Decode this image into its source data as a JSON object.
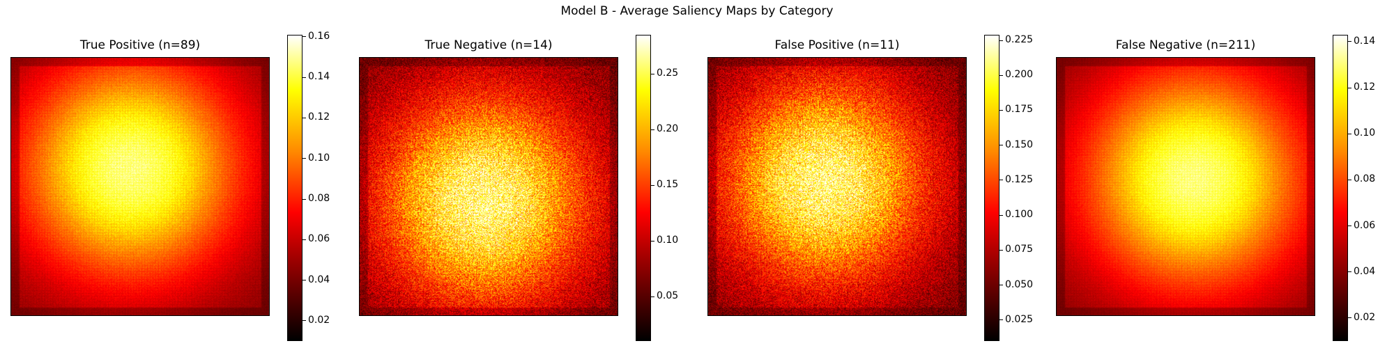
{
  "figure_title": "Model B - Average Saliency Maps by Category",
  "chart_data": [
    {
      "type": "heatmap",
      "title": "True Positive (n=89)",
      "colormap": "hot",
      "hotspot": "center",
      "peak_x": 0.46,
      "peak_y": 0.43,
      "spread": 0.3,
      "noise": 0.12,
      "colorbar": {
        "range": [
          0.01,
          0.161
        ],
        "ticks": [
          0.02,
          0.04,
          0.06,
          0.08,
          0.1,
          0.12,
          0.14,
          0.16
        ],
        "tick_labels": [
          "0.02",
          "0.04",
          "0.06",
          "0.08",
          "0.10",
          "0.12",
          "0.14",
          "0.16"
        ]
      }
    },
    {
      "type": "heatmap",
      "title": "True Negative (n=14)",
      "colormap": "hot",
      "hotspot": "center-left, diffuse",
      "peak_x": 0.48,
      "peak_y": 0.55,
      "spread": 0.28,
      "noise": 0.55,
      "colorbar": {
        "range": [
          0.01,
          0.285
        ],
        "ticks": [
          0.05,
          0.1,
          0.15,
          0.2,
          0.25
        ],
        "tick_labels": [
          "0.05",
          "0.10",
          "0.15",
          "0.20",
          "0.25"
        ]
      }
    },
    {
      "type": "heatmap",
      "title": "False Positive (n=11)",
      "colormap": "hot",
      "hotspot": "center, diffuse",
      "peak_x": 0.45,
      "peak_y": 0.48,
      "spread": 0.27,
      "noise": 0.55,
      "colorbar": {
        "range": [
          0.01,
          0.229
        ],
        "ticks": [
          0.025,
          0.05,
          0.075,
          0.1,
          0.125,
          0.15,
          0.175,
          0.2,
          0.225
        ],
        "tick_labels": [
          "0.025",
          "0.050",
          "0.075",
          "0.100",
          "0.125",
          "0.150",
          "0.175",
          "0.200",
          "0.225"
        ]
      }
    },
    {
      "type": "heatmap",
      "title": "False Negative (n=211)",
      "colormap": "hot",
      "hotspot": "center",
      "peak_x": 0.53,
      "peak_y": 0.47,
      "spread": 0.3,
      "noise": 0.1,
      "colorbar": {
        "range": [
          0.01,
          0.143
        ],
        "ticks": [
          0.02,
          0.04,
          0.06,
          0.08,
          0.1,
          0.12,
          0.14
        ],
        "tick_labels": [
          "0.02",
          "0.04",
          "0.06",
          "0.08",
          "0.10",
          "0.12",
          "0.14"
        ]
      }
    }
  ]
}
